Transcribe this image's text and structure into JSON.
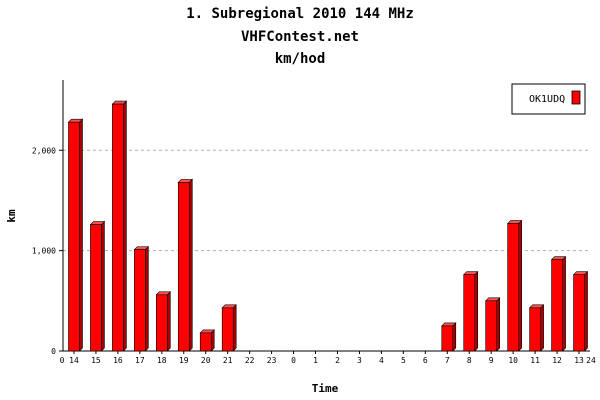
{
  "chart_data": {
    "type": "bar",
    "title": "1. Subregional 2010 144 MHz",
    "subtitle": "VHFContest.net",
    "subtitle2": "km/hod",
    "xlabel": "Time",
    "ylabel": "km",
    "categories": [
      "14",
      "15",
      "16",
      "17",
      "18",
      "19",
      "20",
      "21",
      "22",
      "23",
      "0",
      "1",
      "2",
      "3",
      "4",
      "5",
      "6",
      "7",
      "8",
      "9",
      "10",
      "11",
      "12",
      "13"
    ],
    "x_edge_labels": [
      "0",
      "24"
    ],
    "series": [
      {
        "name": "OK1UDQ",
        "color": "#ff0000",
        "values": [
          2280,
          1260,
          2460,
          1010,
          560,
          1680,
          180,
          430,
          0,
          0,
          0,
          0,
          0,
          0,
          0,
          0,
          0,
          250,
          760,
          500,
          1270,
          430,
          910,
          760
        ]
      }
    ],
    "yticks": [
      0,
      1000,
      2000
    ],
    "ytick_labels": [
      "0",
      "1,000",
      "2,000"
    ],
    "ylim": [
      0,
      2700
    ],
    "grid": true,
    "legend_position": "top-right"
  }
}
